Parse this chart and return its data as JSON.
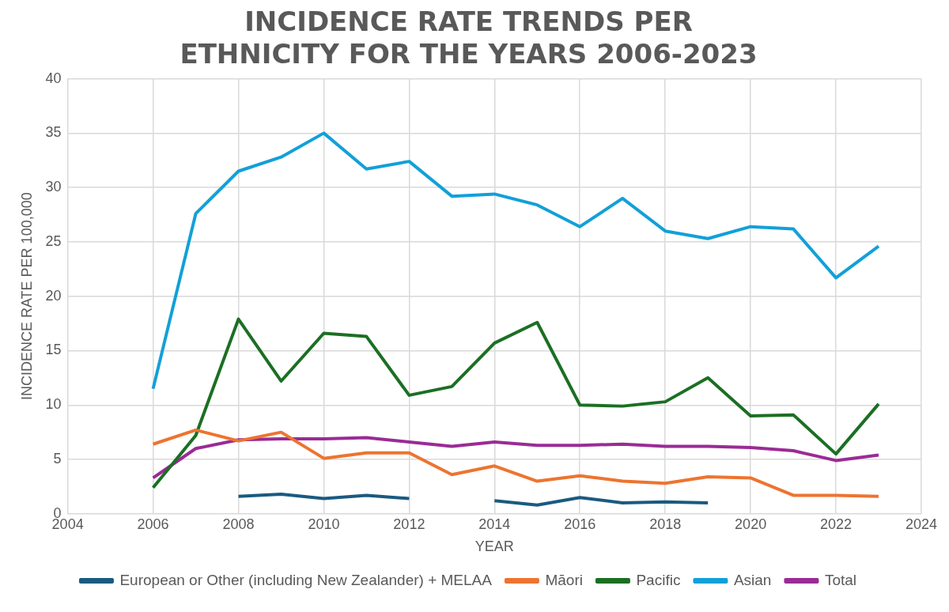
{
  "chart_data": {
    "type": "line",
    "title": "INCIDENCE RATE TRENDS PER ETHNICITY FOR THE YEARS 2006-2023",
    "xlabel": "YEAR",
    "ylabel": "INCIDENCE RATE PER 100,000",
    "x": [
      2006,
      2007,
      2008,
      2009,
      2010,
      2011,
      2012,
      2013,
      2014,
      2015,
      2016,
      2017,
      2018,
      2019,
      2020,
      2021,
      2022,
      2023
    ],
    "series": [
      {
        "name": "European or Other (including New Zealander) + MELAA",
        "color": "#1a5a80",
        "values": [
          null,
          null,
          1.6,
          1.8,
          1.4,
          1.7,
          1.4,
          null,
          1.2,
          0.8,
          1.5,
          1.0,
          1.1,
          1.0,
          null,
          null,
          null,
          null
        ]
      },
      {
        "name": "Māori",
        "color": "#ed7430",
        "values": [
          6.4,
          7.7,
          6.7,
          7.5,
          5.1,
          5.6,
          5.6,
          3.6,
          4.4,
          3.0,
          3.5,
          3.0,
          2.8,
          3.4,
          3.3,
          1.7,
          1.7,
          1.6
        ]
      },
      {
        "name": "Pacific",
        "color": "#1b6f23",
        "values": [
          2.4,
          7.2,
          17.9,
          12.2,
          16.6,
          16.3,
          10.9,
          11.7,
          15.7,
          17.6,
          10.0,
          9.9,
          10.3,
          12.5,
          9.0,
          9.1,
          5.5,
          10.1
        ]
      },
      {
        "name": "Asian",
        "color": "#12a0d8",
        "values": [
          11.5,
          27.6,
          31.5,
          32.8,
          35.0,
          31.7,
          32.4,
          29.2,
          29.4,
          28.4,
          26.4,
          29.0,
          26.0,
          25.3,
          26.4,
          26.2,
          21.7,
          24.6
        ]
      },
      {
        "name": "Total",
        "color": "#9a2b96",
        "values": [
          3.3,
          6.0,
          6.8,
          6.9,
          6.9,
          7.0,
          6.6,
          6.2,
          6.6,
          6.3,
          6.3,
          6.4,
          6.2,
          6.2,
          6.1,
          5.8,
          4.9,
          5.4
        ]
      }
    ],
    "xlim": [
      2004,
      2024
    ],
    "xticks": [
      2004,
      2006,
      2008,
      2010,
      2012,
      2014,
      2016,
      2018,
      2020,
      2022,
      2024
    ],
    "ylim": [
      0,
      40
    ],
    "yticks": [
      0,
      5,
      10,
      15,
      20,
      25,
      30,
      35,
      40
    ],
    "grid": true,
    "legend": "bottom",
    "marker": "none",
    "line_style": "solid"
  }
}
